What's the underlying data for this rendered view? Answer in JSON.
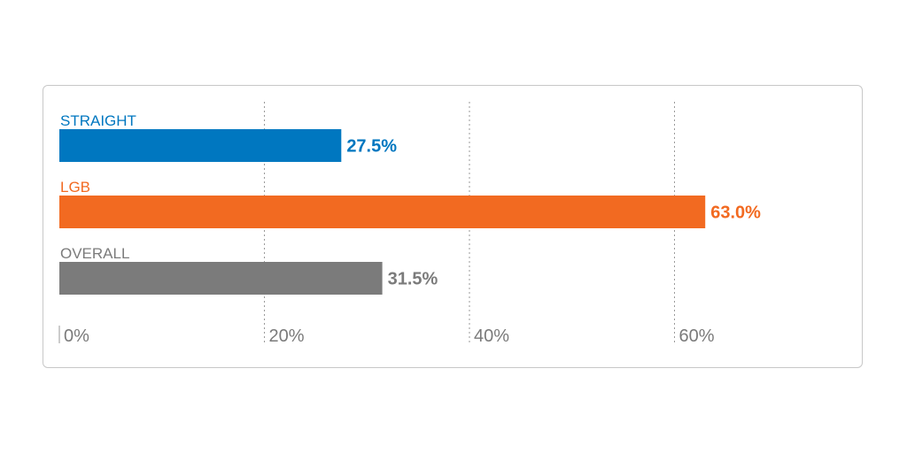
{
  "chart_data": {
    "type": "bar",
    "orientation": "horizontal",
    "categories": [
      "STRAIGHT",
      "LGB",
      "OVERALL"
    ],
    "values": [
      27.5,
      63.0,
      31.5
    ],
    "value_labels": [
      "27.5%",
      "63.0%",
      "31.5%"
    ],
    "colors": [
      "#0077c0",
      "#f26a21",
      "#7b7b7b"
    ],
    "xlim": [
      0,
      70
    ],
    "xticks": [
      0,
      20,
      40,
      60
    ],
    "xtick_labels": [
      "0%",
      "20%",
      "40%",
      "60%"
    ],
    "grid": "vertical dotted",
    "title": "",
    "xlabel": "",
    "ylabel": ""
  }
}
